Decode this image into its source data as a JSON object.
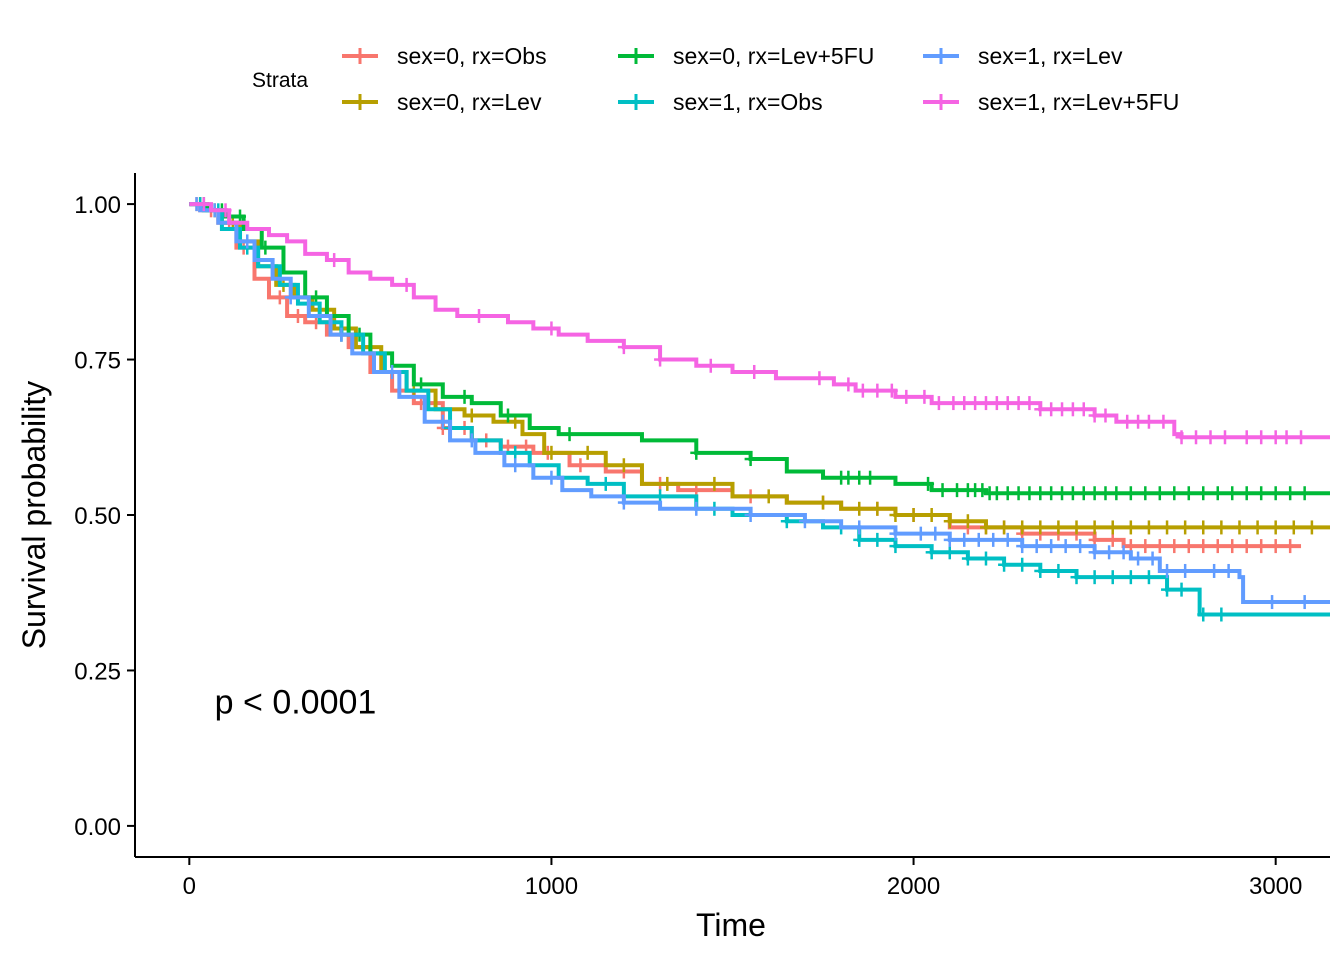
{
  "chart_data": {
    "type": "line",
    "xlabel": "Time",
    "ylabel": "Survival probability",
    "xlim": [
      -150,
      3150
    ],
    "ylim": [
      -0.05,
      1.05
    ],
    "x_ticks": [
      0,
      1000,
      2000,
      3000
    ],
    "x_tick_labels": [
      "0",
      "1000",
      "2000",
      "3000"
    ],
    "y_ticks": [
      0,
      0.25,
      0.5,
      0.75,
      1.0
    ],
    "y_tick_labels": [
      "0.00",
      "0.25",
      "0.50",
      "0.75",
      "1.00"
    ],
    "grid": false,
    "legend": {
      "title": "Strata",
      "position": "top"
    },
    "annotation": {
      "text": "p < 0.0001",
      "x": 70,
      "y": 0.2
    },
    "series": [
      {
        "name": "sex=0, rx=Obs",
        "color": "#F8766D",
        "points": [
          [
            0,
            1.0
          ],
          [
            30,
            0.99
          ],
          [
            80,
            0.97
          ],
          [
            130,
            0.93
          ],
          [
            180,
            0.88
          ],
          [
            220,
            0.85
          ],
          [
            270,
            0.82
          ],
          [
            320,
            0.81
          ],
          [
            380,
            0.79
          ],
          [
            440,
            0.77
          ],
          [
            500,
            0.73
          ],
          [
            560,
            0.7
          ],
          [
            620,
            0.68
          ],
          [
            700,
            0.64
          ],
          [
            780,
            0.62
          ],
          [
            860,
            0.61
          ],
          [
            950,
            0.6
          ],
          [
            1050,
            0.58
          ],
          [
            1150,
            0.57
          ],
          [
            1250,
            0.55
          ],
          [
            1350,
            0.54
          ],
          [
            1500,
            0.53
          ],
          [
            1650,
            0.52
          ],
          [
            1800,
            0.51
          ],
          [
            1950,
            0.5
          ],
          [
            2100,
            0.48
          ],
          [
            2300,
            0.47
          ],
          [
            2500,
            0.46
          ],
          [
            2580,
            0.45
          ],
          [
            3070,
            0.45
          ]
        ],
        "censors": [
          20,
          60,
          110,
          150,
          250,
          300,
          350,
          420,
          480,
          580,
          640,
          700,
          760,
          820,
          880,
          930,
          990,
          1080,
          1200,
          1300,
          1400,
          1550,
          1750,
          1900,
          2000,
          2150,
          2200,
          2250,
          2300,
          2350,
          2400,
          2450,
          2500,
          2550,
          2600,
          2640,
          2680,
          2720,
          2760,
          2800,
          2840,
          2880,
          2920,
          2960,
          3000,
          3040
        ]
      },
      {
        "name": "sex=0, rx=Lev",
        "color": "#B79F00",
        "points": [
          [
            0,
            1.0
          ],
          [
            40,
            0.99
          ],
          [
            90,
            0.97
          ],
          [
            140,
            0.94
          ],
          [
            190,
            0.9
          ],
          [
            240,
            0.87
          ],
          [
            290,
            0.85
          ],
          [
            340,
            0.83
          ],
          [
            400,
            0.8
          ],
          [
            460,
            0.77
          ],
          [
            530,
            0.73
          ],
          [
            600,
            0.7
          ],
          [
            680,
            0.67
          ],
          [
            760,
            0.66
          ],
          [
            840,
            0.65
          ],
          [
            920,
            0.63
          ],
          [
            980,
            0.6
          ],
          [
            1060,
            0.6
          ],
          [
            1150,
            0.58
          ],
          [
            1250,
            0.55
          ],
          [
            1350,
            0.55
          ],
          [
            1500,
            0.53
          ],
          [
            1650,
            0.52
          ],
          [
            1800,
            0.51
          ],
          [
            1950,
            0.5
          ],
          [
            2100,
            0.49
          ],
          [
            2200,
            0.48
          ],
          [
            3150,
            0.48
          ]
        ],
        "censors": [
          30,
          70,
          120,
          260,
          380,
          500,
          620,
          780,
          900,
          1000,
          1100,
          1200,
          1320,
          1450,
          1600,
          1750,
          1850,
          1900,
          1950,
          2000,
          2050,
          2100,
          2150,
          2200,
          2250,
          2300,
          2350,
          2400,
          2450,
          2500,
          2550,
          2600,
          2650,
          2700,
          2750,
          2800,
          2850,
          2900,
          2950,
          3000,
          3050,
          3100
        ]
      },
      {
        "name": "sex=0, rx=Lev+5FU",
        "color": "#00BA38",
        "points": [
          [
            0,
            1.0
          ],
          [
            50,
            0.99
          ],
          [
            100,
            0.98
          ],
          [
            150,
            0.96
          ],
          [
            200,
            0.93
          ],
          [
            260,
            0.89
          ],
          [
            320,
            0.85
          ],
          [
            380,
            0.82
          ],
          [
            440,
            0.79
          ],
          [
            500,
            0.76
          ],
          [
            560,
            0.74
          ],
          [
            620,
            0.71
          ],
          [
            700,
            0.69
          ],
          [
            780,
            0.68
          ],
          [
            860,
            0.66
          ],
          [
            940,
            0.64
          ],
          [
            1020,
            0.63
          ],
          [
            1150,
            0.63
          ],
          [
            1250,
            0.62
          ],
          [
            1400,
            0.6
          ],
          [
            1550,
            0.59
          ],
          [
            1650,
            0.57
          ],
          [
            1750,
            0.56
          ],
          [
            1850,
            0.56
          ],
          [
            1950,
            0.55
          ],
          [
            2050,
            0.54
          ],
          [
            2150,
            0.54
          ],
          [
            2200,
            0.535
          ],
          [
            3150,
            0.535
          ]
        ],
        "censors": [
          40,
          90,
          140,
          210,
          350,
          470,
          640,
          760,
          880,
          1050,
          1400,
          1550,
          1800,
          1820,
          1850,
          1880,
          2040,
          2080,
          2120,
          2150,
          2170,
          2190,
          2210,
          2230,
          2260,
          2290,
          2320,
          2350,
          2380,
          2410,
          2440,
          2470,
          2500,
          2530,
          2560,
          2600,
          2640,
          2680,
          2720,
          2760,
          2800,
          2840,
          2880,
          2920,
          2960,
          3000,
          3040,
          3080
        ]
      },
      {
        "name": "sex=1, rx=Obs",
        "color": "#00BFC4",
        "points": [
          [
            0,
            1.0
          ],
          [
            40,
            0.99
          ],
          [
            90,
            0.96
          ],
          [
            140,
            0.93
          ],
          [
            190,
            0.9
          ],
          [
            250,
            0.87
          ],
          [
            300,
            0.84
          ],
          [
            360,
            0.81
          ],
          [
            420,
            0.79
          ],
          [
            480,
            0.76
          ],
          [
            540,
            0.73
          ],
          [
            600,
            0.7
          ],
          [
            660,
            0.67
          ],
          [
            720,
            0.64
          ],
          [
            780,
            0.62
          ],
          [
            860,
            0.6
          ],
          [
            940,
            0.58
          ],
          [
            1020,
            0.56
          ],
          [
            1100,
            0.55
          ],
          [
            1200,
            0.53
          ],
          [
            1300,
            0.53
          ],
          [
            1400,
            0.51
          ],
          [
            1500,
            0.5
          ],
          [
            1650,
            0.49
          ],
          [
            1750,
            0.48
          ],
          [
            1850,
            0.46
          ],
          [
            1950,
            0.45
          ],
          [
            2050,
            0.44
          ],
          [
            2150,
            0.43
          ],
          [
            2250,
            0.42
          ],
          [
            2350,
            0.41
          ],
          [
            2450,
            0.4
          ],
          [
            2650,
            0.4
          ],
          [
            2700,
            0.38
          ],
          [
            2780,
            0.38
          ],
          [
            2790,
            0.34
          ],
          [
            3150,
            0.34
          ]
        ],
        "censors": [
          30,
          80,
          160,
          420,
          720,
          900,
          1150,
          1300,
          1450,
          1650,
          1800,
          1850,
          1900,
          1950,
          2050,
          2100,
          2150,
          2200,
          2250,
          2300,
          2350,
          2400,
          2450,
          2500,
          2550,
          2600,
          2650,
          2700,
          2740,
          2800,
          2850
        ]
      },
      {
        "name": "sex=1, rx=Lev",
        "color": "#619CFF",
        "points": [
          [
            0,
            1.0
          ],
          [
            30,
            0.99
          ],
          [
            80,
            0.97
          ],
          [
            130,
            0.94
          ],
          [
            180,
            0.91
          ],
          [
            230,
            0.88
          ],
          [
            280,
            0.85
          ],
          [
            330,
            0.82
          ],
          [
            390,
            0.79
          ],
          [
            450,
            0.76
          ],
          [
            510,
            0.73
          ],
          [
            580,
            0.69
          ],
          [
            650,
            0.65
          ],
          [
            720,
            0.62
          ],
          [
            790,
            0.6
          ],
          [
            870,
            0.58
          ],
          [
            950,
            0.56
          ],
          [
            1030,
            0.54
          ],
          [
            1110,
            0.53
          ],
          [
            1200,
            0.52
          ],
          [
            1300,
            0.51
          ],
          [
            1450,
            0.51
          ],
          [
            1550,
            0.5
          ],
          [
            1700,
            0.49
          ],
          [
            1800,
            0.48
          ],
          [
            1950,
            0.47
          ],
          [
            2100,
            0.46
          ],
          [
            2300,
            0.45
          ],
          [
            2500,
            0.44
          ],
          [
            2600,
            0.43
          ],
          [
            2680,
            0.41
          ],
          [
            2900,
            0.4
          ],
          [
            2910,
            0.36
          ],
          [
            3150,
            0.36
          ]
        ],
        "censors": [
          20,
          70,
          160,
          280,
          420,
          560,
          700,
          780,
          900,
          1000,
          1200,
          1400,
          1550,
          1700,
          1850,
          1950,
          2020,
          2060,
          2100,
          2140,
          2180,
          2220,
          2260,
          2300,
          2340,
          2380,
          2420,
          2460,
          2500,
          2540,
          2580,
          2620,
          2660,
          2700,
          2750,
          2830,
          2870,
          2990,
          3080
        ]
      },
      {
        "name": "sex=1, rx=Lev+5FU",
        "color": "#F564E3",
        "points": [
          [
            0,
            1.0
          ],
          [
            60,
            0.99
          ],
          [
            110,
            0.97
          ],
          [
            160,
            0.96
          ],
          [
            220,
            0.95
          ],
          [
            270,
            0.94
          ],
          [
            320,
            0.92
          ],
          [
            380,
            0.91
          ],
          [
            440,
            0.89
          ],
          [
            500,
            0.88
          ],
          [
            560,
            0.87
          ],
          [
            620,
            0.85
          ],
          [
            680,
            0.83
          ],
          [
            740,
            0.82
          ],
          [
            820,
            0.82
          ],
          [
            880,
            0.81
          ],
          [
            950,
            0.8
          ],
          [
            1020,
            0.79
          ],
          [
            1100,
            0.78
          ],
          [
            1200,
            0.77
          ],
          [
            1300,
            0.75
          ],
          [
            1400,
            0.74
          ],
          [
            1500,
            0.73
          ],
          [
            1620,
            0.72
          ],
          [
            1720,
            0.72
          ],
          [
            1780,
            0.71
          ],
          [
            1840,
            0.7
          ],
          [
            1950,
            0.69
          ],
          [
            2050,
            0.68
          ],
          [
            2200,
            0.68
          ],
          [
            2350,
            0.67
          ],
          [
            2500,
            0.66
          ],
          [
            2560,
            0.65
          ],
          [
            2650,
            0.65
          ],
          [
            2720,
            0.63
          ],
          [
            2740,
            0.625
          ],
          [
            3150,
            0.625
          ]
        ],
        "censors": [
          40,
          100,
          400,
          600,
          800,
          1000,
          1200,
          1300,
          1440,
          1560,
          1740,
          1820,
          1860,
          1900,
          1940,
          1980,
          2030,
          2070,
          2110,
          2140,
          2170,
          2200,
          2230,
          2260,
          2290,
          2320,
          2350,
          2380,
          2410,
          2440,
          2470,
          2500,
          2530,
          2590,
          2620,
          2650,
          2690,
          2740,
          2780,
          2820,
          2860,
          2920,
          2960,
          3000,
          3030,
          3070
        ]
      }
    ]
  }
}
